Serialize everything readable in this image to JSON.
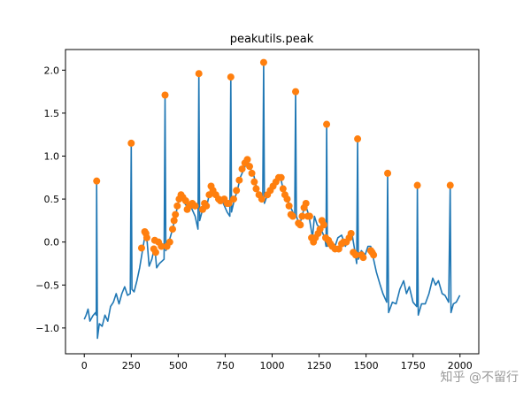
{
  "chart_data": {
    "type": "line",
    "title": "peakutils.peak",
    "xlabel": "",
    "ylabel": "",
    "xlim": [
      -100,
      2100
    ],
    "ylim": [
      -1.3,
      2.24
    ],
    "xticks": [
      0,
      250,
      500,
      750,
      1000,
      1250,
      1500,
      1750,
      2000
    ],
    "xtick_labels": [
      "0",
      "250",
      "500",
      "750",
      "1000",
      "1250",
      "1500",
      "1750",
      "2000"
    ],
    "yticks": [
      -1.0,
      -0.5,
      0.0,
      0.5,
      1.0,
      1.5,
      2.0
    ],
    "ytick_labels": [
      "−1.0",
      "−0.5",
      "0.0",
      "0.5",
      "1.0",
      "1.5",
      "2.0"
    ],
    "grid": false,
    "colors": {
      "signal": "#1f77b4",
      "peaks": "#ff7f0e"
    },
    "signal": [
      [
        0,
        -0.9
      ],
      [
        10,
        -0.85
      ],
      [
        20,
        -0.78
      ],
      [
        30,
        -0.92
      ],
      [
        45,
        -0.86
      ],
      [
        60,
        -0.82
      ],
      [
        64,
        -0.85
      ],
      [
        66,
        0.71
      ],
      [
        70,
        -1.12
      ],
      [
        80,
        -0.95
      ],
      [
        95,
        -0.98
      ],
      [
        110,
        -0.85
      ],
      [
        125,
        -0.92
      ],
      [
        140,
        -0.75
      ],
      [
        155,
        -0.7
      ],
      [
        170,
        -0.6
      ],
      [
        185,
        -0.72
      ],
      [
        200,
        -0.6
      ],
      [
        215,
        -0.52
      ],
      [
        230,
        -0.62
      ],
      [
        245,
        -0.6
      ],
      [
        250,
        1.15
      ],
      [
        254,
        -0.55
      ],
      [
        265,
        -0.58
      ],
      [
        280,
        -0.45
      ],
      [
        295,
        -0.3
      ],
      [
        310,
        -0.1
      ],
      [
        325,
        0.1
      ],
      [
        335,
        0.0
      ],
      [
        345,
        -0.28
      ],
      [
        360,
        -0.2
      ],
      [
        375,
        -0.05
      ],
      [
        385,
        -0.3
      ],
      [
        400,
        -0.25
      ],
      [
        425,
        -0.2
      ],
      [
        430,
        1.71
      ],
      [
        434,
        -0.1
      ],
      [
        450,
        0.0
      ],
      [
        470,
        0.15
      ],
      [
        490,
        0.35
      ],
      [
        505,
        0.5
      ],
      [
        520,
        0.55
      ],
      [
        535,
        0.45
      ],
      [
        550,
        0.4
      ],
      [
        570,
        0.4
      ],
      [
        590,
        0.3
      ],
      [
        605,
        0.15
      ],
      [
        610,
        1.96
      ],
      [
        614,
        0.25
      ],
      [
        630,
        0.38
      ],
      [
        650,
        0.4
      ],
      [
        665,
        0.55
      ],
      [
        680,
        0.6
      ],
      [
        700,
        0.52
      ],
      [
        720,
        0.5
      ],
      [
        740,
        0.45
      ],
      [
        760,
        0.35
      ],
      [
        775,
        0.3
      ],
      [
        780,
        1.92
      ],
      [
        784,
        0.35
      ],
      [
        800,
        0.5
      ],
      [
        815,
        0.6
      ],
      [
        830,
        0.75
      ],
      [
        850,
        0.85
      ],
      [
        870,
        0.95
      ],
      [
        885,
        0.85
      ],
      [
        900,
        0.8
      ],
      [
        915,
        0.65
      ],
      [
        930,
        0.55
      ],
      [
        950,
        0.5
      ],
      [
        955,
        2.09
      ],
      [
        959,
        0.45
      ],
      [
        975,
        0.55
      ],
      [
        990,
        0.6
      ],
      [
        1010,
        0.65
      ],
      [
        1030,
        0.72
      ],
      [
        1045,
        0.75
      ],
      [
        1060,
        0.6
      ],
      [
        1080,
        0.5
      ],
      [
        1100,
        0.4
      ],
      [
        1120,
        0.3
      ],
      [
        1125,
        1.75
      ],
      [
        1129,
        0.3
      ],
      [
        1145,
        0.2
      ],
      [
        1160,
        0.3
      ],
      [
        1175,
        0.45
      ],
      [
        1190,
        0.35
      ],
      [
        1200,
        0.25
      ],
      [
        1215,
        0.05
      ],
      [
        1225,
        0.3
      ],
      [
        1240,
        0.2
      ],
      [
        1260,
        0.15
      ],
      [
        1280,
        0.05
      ],
      [
        1287,
        -0.05
      ],
      [
        1290,
        1.37
      ],
      [
        1294,
        -0.05
      ],
      [
        1310,
        0.0
      ],
      [
        1330,
        -0.08
      ],
      [
        1350,
        0.05
      ],
      [
        1370,
        0.08
      ],
      [
        1390,
        -0.05
      ],
      [
        1410,
        0.05
      ],
      [
        1425,
        0.1
      ],
      [
        1440,
        -0.1
      ],
      [
        1450,
        -0.25
      ],
      [
        1455,
        1.2
      ],
      [
        1459,
        -0.2
      ],
      [
        1475,
        -0.1
      ],
      [
        1495,
        -0.15
      ],
      [
        1510,
        -0.05
      ],
      [
        1525,
        -0.05
      ],
      [
        1540,
        -0.2
      ],
      [
        1555,
        -0.35
      ],
      [
        1575,
        -0.5
      ],
      [
        1590,
        -0.6
      ],
      [
        1610,
        -0.7
      ],
      [
        1615,
        0.8
      ],
      [
        1620,
        -0.82
      ],
      [
        1640,
        -0.7
      ],
      [
        1660,
        -0.72
      ],
      [
        1680,
        -0.55
      ],
      [
        1700,
        -0.45
      ],
      [
        1715,
        -0.6
      ],
      [
        1730,
        -0.52
      ],
      [
        1750,
        -0.7
      ],
      [
        1770,
        -0.75
      ],
      [
        1773,
        0.66
      ],
      [
        1778,
        -0.85
      ],
      [
        1795,
        -0.72
      ],
      [
        1815,
        -0.72
      ],
      [
        1835,
        -0.6
      ],
      [
        1855,
        -0.42
      ],
      [
        1870,
        -0.5
      ],
      [
        1885,
        -0.45
      ],
      [
        1905,
        -0.6
      ],
      [
        1920,
        -0.62
      ],
      [
        1940,
        -0.7
      ],
      [
        1948,
        0.66
      ],
      [
        1952,
        -0.82
      ],
      [
        1965,
        -0.72
      ],
      [
        1980,
        -0.7
      ],
      [
        1999,
        -0.62
      ]
    ],
    "peaks": [
      [
        66,
        0.71
      ],
      [
        250,
        1.15
      ],
      [
        430,
        1.71
      ],
      [
        610,
        1.96
      ],
      [
        780,
        1.92
      ],
      [
        955,
        2.09
      ],
      [
        1125,
        1.75
      ],
      [
        1290,
        1.37
      ],
      [
        1455,
        1.2
      ],
      [
        1615,
        0.8
      ],
      [
        1773,
        0.66
      ],
      [
        1948,
        0.66
      ],
      [
        305,
        -0.07
      ],
      [
        322,
        0.12
      ],
      [
        328,
        0.1
      ],
      [
        333,
        0.05
      ],
      [
        370,
        -0.08
      ],
      [
        375,
        0.02
      ],
      [
        380,
        -0.12
      ],
      [
        395,
        0.0
      ],
      [
        410,
        -0.05
      ],
      [
        440,
        -0.05
      ],
      [
        455,
        0.0
      ],
      [
        470,
        0.15
      ],
      [
        478,
        0.25
      ],
      [
        485,
        0.32
      ],
      [
        495,
        0.42
      ],
      [
        505,
        0.5
      ],
      [
        515,
        0.55
      ],
      [
        525,
        0.52
      ],
      [
        540,
        0.48
      ],
      [
        548,
        0.38
      ],
      [
        560,
        0.42
      ],
      [
        575,
        0.45
      ],
      [
        590,
        0.42
      ],
      [
        630,
        0.38
      ],
      [
        640,
        0.45
      ],
      [
        650,
        0.42
      ],
      [
        665,
        0.55
      ],
      [
        675,
        0.65
      ],
      [
        685,
        0.6
      ],
      [
        700,
        0.55
      ],
      [
        715,
        0.5
      ],
      [
        725,
        0.48
      ],
      [
        745,
        0.5
      ],
      [
        760,
        0.45
      ],
      [
        770,
        0.45
      ],
      [
        795,
        0.5
      ],
      [
        810,
        0.6
      ],
      [
        825,
        0.72
      ],
      [
        840,
        0.85
      ],
      [
        855,
        0.92
      ],
      [
        868,
        0.96
      ],
      [
        880,
        0.88
      ],
      [
        892,
        0.8
      ],
      [
        905,
        0.7
      ],
      [
        915,
        0.62
      ],
      [
        930,
        0.55
      ],
      [
        945,
        0.5
      ],
      [
        975,
        0.55
      ],
      [
        990,
        0.6
      ],
      [
        1005,
        0.65
      ],
      [
        1020,
        0.7
      ],
      [
        1035,
        0.75
      ],
      [
        1048,
        0.75
      ],
      [
        1058,
        0.62
      ],
      [
        1068,
        0.55
      ],
      [
        1080,
        0.5
      ],
      [
        1090,
        0.42
      ],
      [
        1100,
        0.32
      ],
      [
        1110,
        0.3
      ],
      [
        1140,
        0.22
      ],
      [
        1150,
        0.2
      ],
      [
        1160,
        0.3
      ],
      [
        1170,
        0.4
      ],
      [
        1180,
        0.45
      ],
      [
        1190,
        0.3
      ],
      [
        1200,
        0.3
      ],
      [
        1210,
        0.05
      ],
      [
        1220,
        0.0
      ],
      [
        1230,
        0.05
      ],
      [
        1245,
        0.1
      ],
      [
        1255,
        0.15
      ],
      [
        1265,
        0.25
      ],
      [
        1275,
        0.2
      ],
      [
        1285,
        0.05
      ],
      [
        1300,
        0.02
      ],
      [
        1310,
        -0.02
      ],
      [
        1320,
        -0.05
      ],
      [
        1335,
        -0.08
      ],
      [
        1355,
        -0.08
      ],
      [
        1370,
        -0.02
      ],
      [
        1380,
        0.0
      ],
      [
        1395,
        0.0
      ],
      [
        1410,
        0.05
      ],
      [
        1420,
        0.1
      ],
      [
        1432,
        -0.12
      ],
      [
        1445,
        -0.15
      ],
      [
        1475,
        -0.15
      ],
      [
        1485,
        -0.18
      ],
      [
        1525,
        -0.1
      ],
      [
        1532,
        -0.12
      ],
      [
        1540,
        -0.15
      ]
    ]
  },
  "watermark": "知乎 @不留行"
}
